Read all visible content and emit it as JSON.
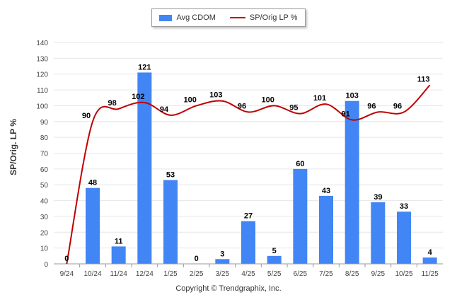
{
  "chart_data": {
    "type": "bar",
    "categories": [
      "9/24",
      "10/24",
      "11/24",
      "12/24",
      "1/25",
      "2/25",
      "3/25",
      "4/25",
      "5/25",
      "6/25",
      "7/25",
      "8/25",
      "9/25",
      "10/25",
      "11/25"
    ],
    "series": [
      {
        "name": "Avg CDOM",
        "kind": "bar",
        "color": "#4285f4",
        "values": [
          0,
          48,
          11,
          121,
          53,
          0,
          3,
          27,
          5,
          60,
          43,
          103,
          39,
          33,
          4
        ]
      },
      {
        "name": "SP/Orig LP %",
        "kind": "line",
        "color": "#c00000",
        "values": [
          0,
          90,
          98,
          102,
          94,
          100,
          103,
          96,
          100,
          95,
          101,
          91,
          96,
          96,
          113
        ]
      }
    ],
    "ylabel": "SP/Orig. LP %",
    "ylim": [
      0,
      140
    ],
    "yticks": [
      0,
      10,
      20,
      30,
      40,
      50,
      60,
      70,
      80,
      90,
      100,
      110,
      120,
      130,
      140
    ],
    "grid": true,
    "legend": "top-center"
  },
  "footer": "Copyright © Trendgraphix, Inc."
}
